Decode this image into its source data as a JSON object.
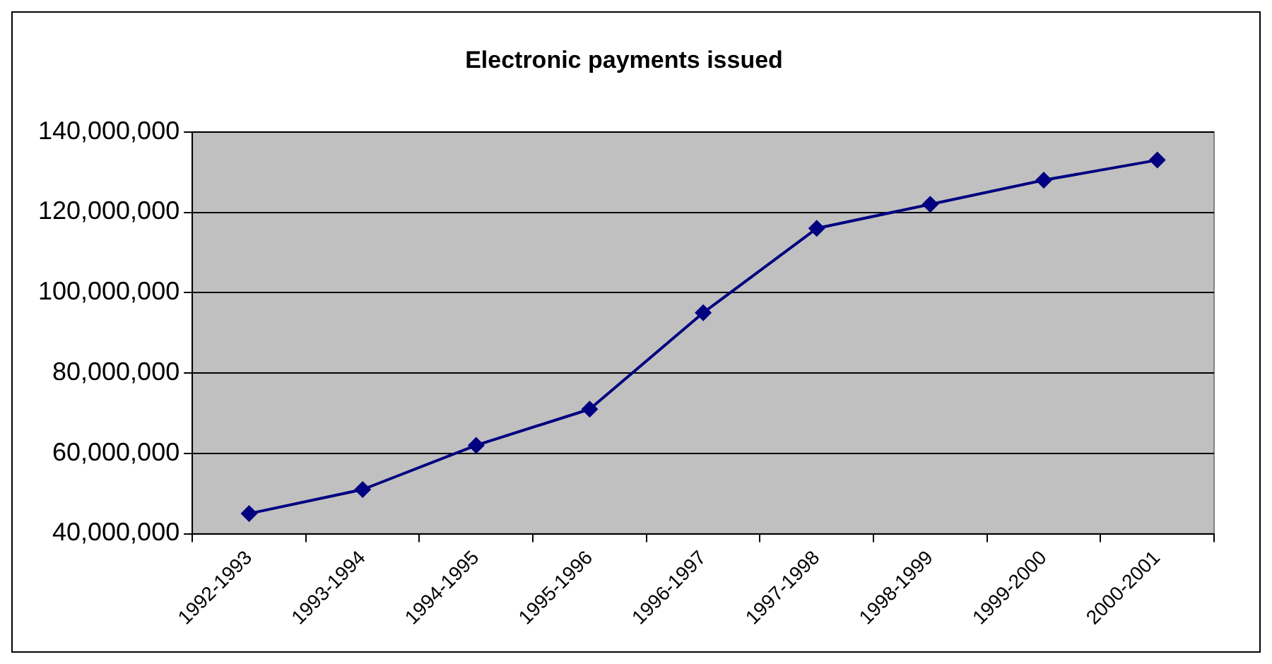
{
  "chart_data": {
    "type": "line",
    "title": "Electronic payments issued",
    "categories": [
      "1992-1993",
      "1993-1994",
      "1994-1995",
      "1995-1996",
      "1996-1997",
      "1997-1998",
      "1998-1999",
      "1999-2000",
      "2000-2001"
    ],
    "series": [
      {
        "color": "#000080",
        "values": [
          45000000,
          51000000,
          62000000,
          71000000,
          95000000,
          116000000,
          122000000,
          128000000,
          133000000
        ]
      }
    ],
    "ylim": [
      40000000,
      140000000
    ],
    "yticks": [
      {
        "value": 40000000,
        "label": "40,000,000"
      },
      {
        "value": 60000000,
        "label": "60,000,000"
      },
      {
        "value": 80000000,
        "label": "80,000,000"
      },
      {
        "value": 100000000,
        "label": "100,000,000"
      },
      {
        "value": 120000000,
        "label": "120,000,000"
      },
      {
        "value": 140000000,
        "label": "140,000,000"
      }
    ],
    "grid": "y",
    "legend": false,
    "marker": "diamond",
    "line_style": "solid"
  }
}
